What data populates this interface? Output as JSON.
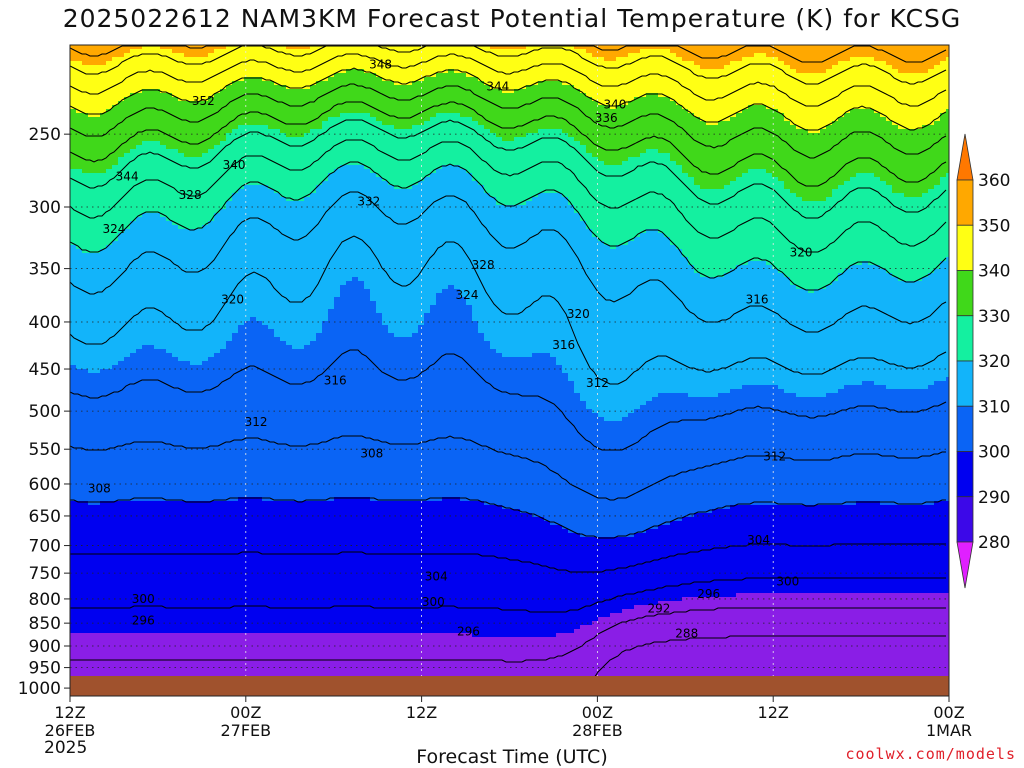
{
  "chart_data": {
    "type": "contour",
    "title": "2025022612 NAM3KM Forecast Potential Temperature (K) for KCSG",
    "xlabel": "Forecast Time (UTC)",
    "ylabel": "",
    "year_label": "2025",
    "credit": "coolwx.com/models",
    "y_axis": {
      "scale": "pressure",
      "ylim": [
        1020,
        200
      ],
      "ticks": [
        "250",
        "300",
        "350",
        "400",
        "450",
        "500",
        "550",
        "600",
        "650",
        "700",
        "750",
        "800",
        "850",
        "900",
        "950",
        "1000"
      ],
      "tick_values": [
        250,
        300,
        350,
        400,
        450,
        500,
        550,
        600,
        650,
        700,
        750,
        800,
        850,
        900,
        950,
        1000
      ]
    },
    "x_axis": {
      "range_hours": [
        0,
        60
      ],
      "ticks": [
        {
          "hour": 0,
          "label": "12Z",
          "date": "26FEB"
        },
        {
          "hour": 12,
          "label": "00Z",
          "date": "27FEB"
        },
        {
          "hour": 24,
          "label": "12Z",
          "date": ""
        },
        {
          "hour": 36,
          "label": "00Z",
          "date": "28FEB"
        },
        {
          "hour": 48,
          "label": "12Z",
          "date": ""
        },
        {
          "hour": 60,
          "label": "00Z",
          "date": "1MAR"
        }
      ]
    },
    "grid": true,
    "colorbar": {
      "placement": "right",
      "levels": [
        280,
        290,
        300,
        310,
        320,
        330,
        340,
        350,
        360
      ],
      "labels": [
        "280",
        "290",
        "300",
        "310",
        "320",
        "330",
        "340",
        "350",
        "360"
      ],
      "colors": [
        "#e020ff",
        "#8a1ee6",
        "#3c08e8",
        "#0000f0",
        "#0a64f5",
        "#12b4fa",
        "#14f0a0",
        "#40d81a",
        "#ffff14",
        "#ffa800",
        "#ff7800"
      ]
    },
    "fill_bands": [
      {
        "range": "<290",
        "color": "#8a1ee6"
      },
      {
        "range": "290-300",
        "color": "#0000f0"
      },
      {
        "range": "300-310",
        "color": "#0a64f5"
      },
      {
        "range": "310-320",
        "color": "#12b4fa"
      },
      {
        "range": "320-330",
        "color": "#14f0a0"
      },
      {
        "range": "330-340",
        "color": "#40d81a"
      },
      {
        "range": "340-350",
        "color": "#ffff14"
      },
      {
        "range": ">350",
        "color": "#ffa800"
      }
    ],
    "surface_color": "#a0522d",
    "contour_labels": [
      {
        "text": "348",
        "t": 21.2,
        "p": 210
      },
      {
        "text": "344",
        "t": 29.2,
        "p": 222
      },
      {
        "text": "352",
        "t": 9.1,
        "p": 230
      },
      {
        "text": "340",
        "t": 37.2,
        "p": 232
      },
      {
        "text": "336",
        "t": 36.6,
        "p": 240
      },
      {
        "text": "340",
        "t": 11.2,
        "p": 270
      },
      {
        "text": "344",
        "t": 3.9,
        "p": 278
      },
      {
        "text": "328",
        "t": 8.2,
        "p": 291
      },
      {
        "text": "332",
        "t": 20.4,
        "p": 296
      },
      {
        "text": "324",
        "t": 3.0,
        "p": 317
      },
      {
        "text": "320",
        "t": 49.9,
        "p": 336
      },
      {
        "text": "328",
        "t": 28.2,
        "p": 347
      },
      {
        "text": "324",
        "t": 27.1,
        "p": 374
      },
      {
        "text": "320",
        "t": 11.1,
        "p": 378
      },
      {
        "text": "316",
        "t": 46.9,
        "p": 378
      },
      {
        "text": "320",
        "t": 34.7,
        "p": 392
      },
      {
        "text": "316",
        "t": 33.7,
        "p": 424
      },
      {
        "text": "316",
        "t": 18.1,
        "p": 463
      },
      {
        "text": "312",
        "t": 36.0,
        "p": 466
      },
      {
        "text": "312",
        "t": 12.7,
        "p": 514
      },
      {
        "text": "308",
        "t": 20.6,
        "p": 556
      },
      {
        "text": "312",
        "t": 48.1,
        "p": 560
      },
      {
        "text": "308",
        "t": 2.0,
        "p": 607
      },
      {
        "text": "304",
        "t": 47.0,
        "p": 690
      },
      {
        "text": "304",
        "t": 25.0,
        "p": 756
      },
      {
        "text": "300",
        "t": 49.0,
        "p": 766
      },
      {
        "text": "296",
        "t": 43.6,
        "p": 790
      },
      {
        "text": "300",
        "t": 5.0,
        "p": 800
      },
      {
        "text": "300",
        "t": 24.8,
        "p": 806
      },
      {
        "text": "292",
        "t": 40.2,
        "p": 819
      },
      {
        "text": "296",
        "t": 5.0,
        "p": 844
      },
      {
        "text": "296",
        "t": 27.2,
        "p": 868
      },
      {
        "text": "288",
        "t": 42.1,
        "p": 872
      }
    ]
  }
}
